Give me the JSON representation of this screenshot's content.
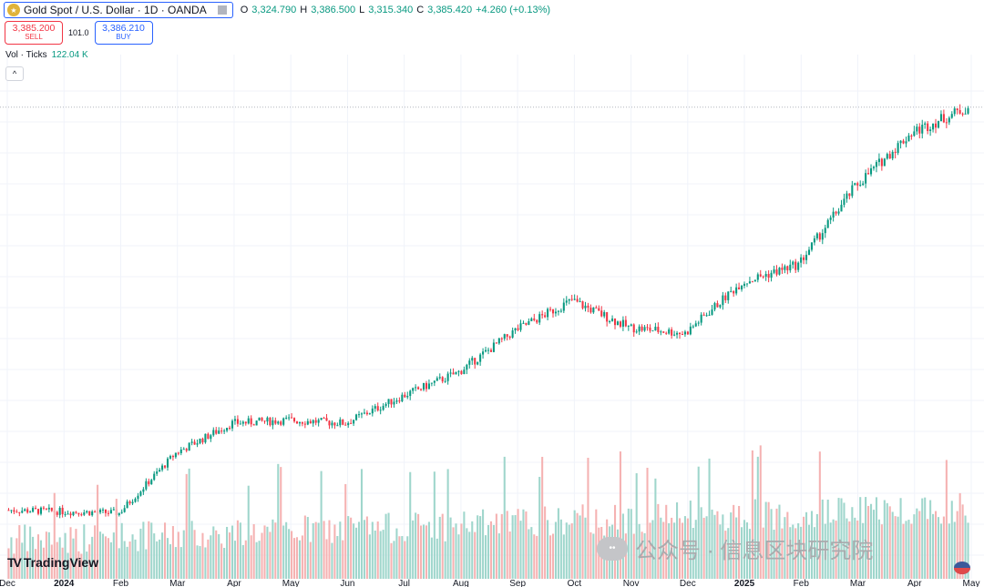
{
  "header": {
    "symbol": "Gold Spot / U.S. Dollar · 1D · OANDA",
    "ohlc": {
      "o_label": "O",
      "o": "3,324.790",
      "h_label": "H",
      "h": "3,386.500",
      "l_label": "L",
      "l": "3,315.340",
      "c_label": "C",
      "c": "3,385.420",
      "change": "+4.260 (+0.13%)"
    }
  },
  "trade": {
    "sell_price": "3,385.200",
    "sell_label": "SELL",
    "spread": "101.0",
    "buy_price": "3,386.210",
    "buy_label": "BUY"
  },
  "volume": {
    "label": "Vol · Ticks",
    "value": "122.04 K"
  },
  "collapse_icon": "chevron-up-icon",
  "brand": {
    "name": "TradingView"
  },
  "watermark": {
    "text": "公众号 · 信息区块研究院"
  },
  "colors": {
    "up": "#089981",
    "down": "#f23645",
    "vol_up": "#9fd6cc",
    "vol_down": "#f5b2b2"
  },
  "chart_data": {
    "type": "candlestick",
    "title": "",
    "x_axis_ticks": [
      "Dec",
      "2024",
      "Feb",
      "Mar",
      "Apr",
      "May",
      "Jun",
      "Jul",
      "Aug",
      "Sep",
      "Oct",
      "Nov",
      "Dec",
      "2025",
      "Feb",
      "Mar",
      "Apr",
      "May"
    ],
    "price_range": [
      1950,
      3500
    ],
    "volume_range": [
      0,
      160
    ],
    "grid": true,
    "monthly_path": [
      {
        "period": "Dec",
        "close": 2040
      },
      {
        "period": "2024",
        "close": 2035
      },
      {
        "period": "Feb",
        "close": 2030
      },
      {
        "period": "Mar",
        "close": 2230
      },
      {
        "period": "Apr",
        "close": 2330
      },
      {
        "period": "May",
        "close": 2340
      },
      {
        "period": "Jun",
        "close": 2330
      },
      {
        "period": "Jul",
        "close": 2420
      },
      {
        "period": "Aug",
        "close": 2500
      },
      {
        "period": "Sep",
        "close": 2640
      },
      {
        "period": "Oct",
        "close": 2740
      },
      {
        "period": "Nov",
        "close": 2650
      },
      {
        "period": "Dec",
        "close": 2630
      },
      {
        "period": "2025",
        "close": 2800
      },
      {
        "period": "Feb",
        "close": 2860
      },
      {
        "period": "Mar",
        "close": 3120
      },
      {
        "period": "Apr",
        "close": 3300
      },
      {
        "period": "May",
        "close": 3385
      }
    ],
    "last_price": 3385.42
  }
}
